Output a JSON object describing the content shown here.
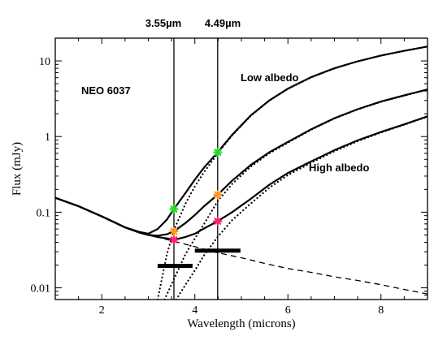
{
  "chart_data": {
    "type": "line",
    "xlabel": "Wavelength (microns)",
    "ylabel": "Flux (mJy)",
    "xlim": [
      1,
      9
    ],
    "ylim": [
      0.007,
      20
    ],
    "y_scale": "log",
    "x_ticks": [
      2,
      4,
      6,
      8
    ],
    "y_ticks": [
      {
        "value": 0.01,
        "label": "0.01"
      },
      {
        "value": 0.1,
        "label": "0.1"
      },
      {
        "value": 1,
        "label": "1"
      },
      {
        "value": 10,
        "label": "10"
      }
    ],
    "bands": [
      {
        "label": "3.55µm",
        "x": 3.55
      },
      {
        "label": "4.49µm",
        "x": 4.49
      }
    ],
    "annotations": {
      "object": "NEO 6037",
      "low": "Low albedo",
      "high": "High albedo"
    },
    "series": [
      {
        "style": "solid",
        "x": [
          1,
          1.5,
          2,
          2.5,
          2.8,
          3.0,
          3.2,
          3.4,
          3.55,
          3.8,
          4.0,
          4.2,
          4.49,
          4.8,
          5.2,
          5.6,
          6,
          6.5,
          7,
          7.5,
          8,
          8.5,
          9
        ],
        "y": [
          0.155,
          0.12,
          0.088,
          0.063,
          0.055,
          0.052,
          0.06,
          0.08,
          0.11,
          0.18,
          0.27,
          0.39,
          0.62,
          1.05,
          1.9,
          3.0,
          4.3,
          6.1,
          8.0,
          9.9,
          11.8,
          13.6,
          15.5
        ]
      },
      {
        "style": "solid",
        "x": [
          1,
          1.5,
          2,
          2.5,
          2.8,
          3.0,
          3.2,
          3.4,
          3.55,
          3.8,
          4.0,
          4.2,
          4.49,
          4.8,
          5.2,
          5.6,
          6,
          6.5,
          7,
          7.5,
          8,
          8.5,
          9
        ],
        "y": [
          0.155,
          0.12,
          0.088,
          0.063,
          0.054,
          0.05,
          0.049,
          0.051,
          0.056,
          0.072,
          0.092,
          0.12,
          0.17,
          0.26,
          0.42,
          0.62,
          0.85,
          1.25,
          1.75,
          2.3,
          2.9,
          3.5,
          4.2
        ]
      },
      {
        "style": "solid",
        "x": [
          1,
          1.5,
          2,
          2.5,
          2.8,
          3.0,
          3.2,
          3.4,
          3.55,
          3.8,
          4.0,
          4.2,
          4.49,
          4.8,
          5.2,
          5.6,
          6,
          6.5,
          7,
          7.5,
          8,
          8.5,
          9
        ],
        "y": [
          0.155,
          0.12,
          0.088,
          0.063,
          0.054,
          0.05,
          0.047,
          0.045,
          0.043,
          0.047,
          0.052,
          0.061,
          0.076,
          0.1,
          0.15,
          0.23,
          0.33,
          0.47,
          0.66,
          0.89,
          1.15,
          1.45,
          1.85
        ]
      },
      {
        "style": "dashed",
        "x": [
          1,
          1.5,
          2,
          2.5,
          3,
          3.5,
          4,
          4.5,
          5,
          5.5,
          6,
          6.5,
          7,
          7.5,
          8,
          8.5,
          9
        ],
        "y": [
          0.155,
          0.12,
          0.088,
          0.063,
          0.05,
          0.042,
          0.035,
          0.029,
          0.025,
          0.021,
          0.018,
          0.016,
          0.014,
          0.0125,
          0.011,
          0.0095,
          0.0083
        ]
      },
      {
        "style": "dotted",
        "x": [
          3.2,
          3.4,
          3.55,
          3.8,
          4.0,
          4.2,
          4.49,
          4.8,
          5.2,
          5.6,
          6,
          6.5,
          7,
          7.5,
          8,
          8.5,
          9
        ],
        "y": [
          0.007,
          0.028,
          0.058,
          0.13,
          0.22,
          0.34,
          0.6,
          1.03,
          1.88,
          2.98,
          4.28,
          6.05,
          7.95,
          9.85,
          11.75,
          13.55,
          15.45
        ]
      },
      {
        "style": "dotted",
        "x": [
          3.35,
          3.55,
          3.8,
          4.0,
          4.2,
          4.49,
          4.8,
          5.2,
          5.6,
          6,
          6.5,
          7,
          7.5,
          8,
          8.5,
          9
        ],
        "y": [
          0.007,
          0.013,
          0.028,
          0.045,
          0.07,
          0.14,
          0.235,
          0.4,
          0.6,
          0.83,
          1.23,
          1.73,
          2.28,
          2.88,
          3.48,
          4.18
        ]
      },
      {
        "style": "dotted",
        "x": [
          3.6,
          3.8,
          4.0,
          4.2,
          4.49,
          4.8,
          5.2,
          5.6,
          6,
          6.5,
          7,
          7.5,
          8,
          8.5,
          9
        ],
        "y": [
          0.007,
          0.011,
          0.017,
          0.027,
          0.047,
          0.078,
          0.13,
          0.21,
          0.31,
          0.45,
          0.64,
          0.87,
          1.13,
          1.43,
          1.83
        ]
      }
    ],
    "markers": [
      {
        "x": 3.55,
        "y": 0.11,
        "color": "#22dd22"
      },
      {
        "x": 3.55,
        "y": 0.056,
        "color": "#ff9922"
      },
      {
        "x": 3.55,
        "y": 0.043,
        "color": "#ff2277"
      },
      {
        "x": 4.49,
        "y": 0.62,
        "color": "#22dd22"
      },
      {
        "x": 4.49,
        "y": 0.17,
        "color": "#ff9922"
      },
      {
        "x": 4.49,
        "y": 0.076,
        "color": "#ff2277"
      }
    ],
    "limits": [
      {
        "x": [
          3.2,
          3.95
        ],
        "y": 0.0195
      },
      {
        "x": [
          4.0,
          4.98
        ],
        "y": 0.031
      }
    ]
  }
}
